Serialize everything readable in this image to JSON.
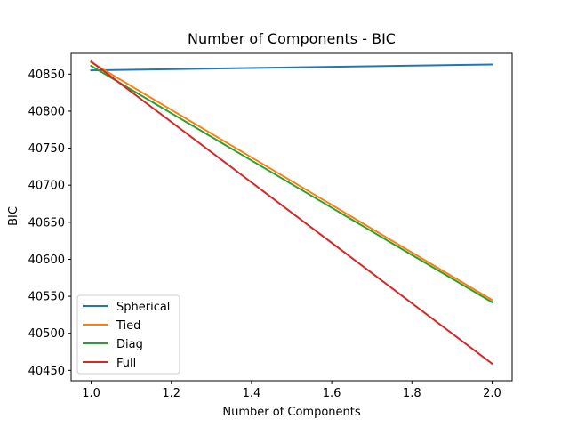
{
  "chart_data": {
    "type": "line",
    "title": "Number of Components - BIC",
    "xlabel": "Number of Components",
    "ylabel": "BIC",
    "x": [
      1.0,
      2.0
    ],
    "xlim": [
      0.95,
      2.05
    ],
    "ylim": [
      40436,
      40878
    ],
    "xticks": [
      1.0,
      1.2,
      1.4,
      1.6,
      1.8,
      2.0
    ],
    "xtick_labels": [
      "1.0",
      "1.2",
      "1.4",
      "1.6",
      "1.8",
      "2.0"
    ],
    "yticks": [
      40450,
      40500,
      40550,
      40600,
      40650,
      40700,
      40750,
      40800,
      40850
    ],
    "ytick_labels": [
      "40450",
      "40500",
      "40550",
      "40600",
      "40650",
      "40700",
      "40750",
      "40800",
      "40850"
    ],
    "grid": false,
    "legend_position": "lower-left",
    "series": [
      {
        "name": "Spherical",
        "color": "#1f77b4",
        "values": [
          40855,
          40863
        ]
      },
      {
        "name": "Tied",
        "color": "#ff7f0e",
        "values": [
          40866,
          40545
        ]
      },
      {
        "name": "Diag",
        "color": "#2ca02c",
        "values": [
          40861,
          40542
        ]
      },
      {
        "name": "Full",
        "color": "#d62728",
        "values": [
          40867,
          40459
        ]
      }
    ]
  }
}
